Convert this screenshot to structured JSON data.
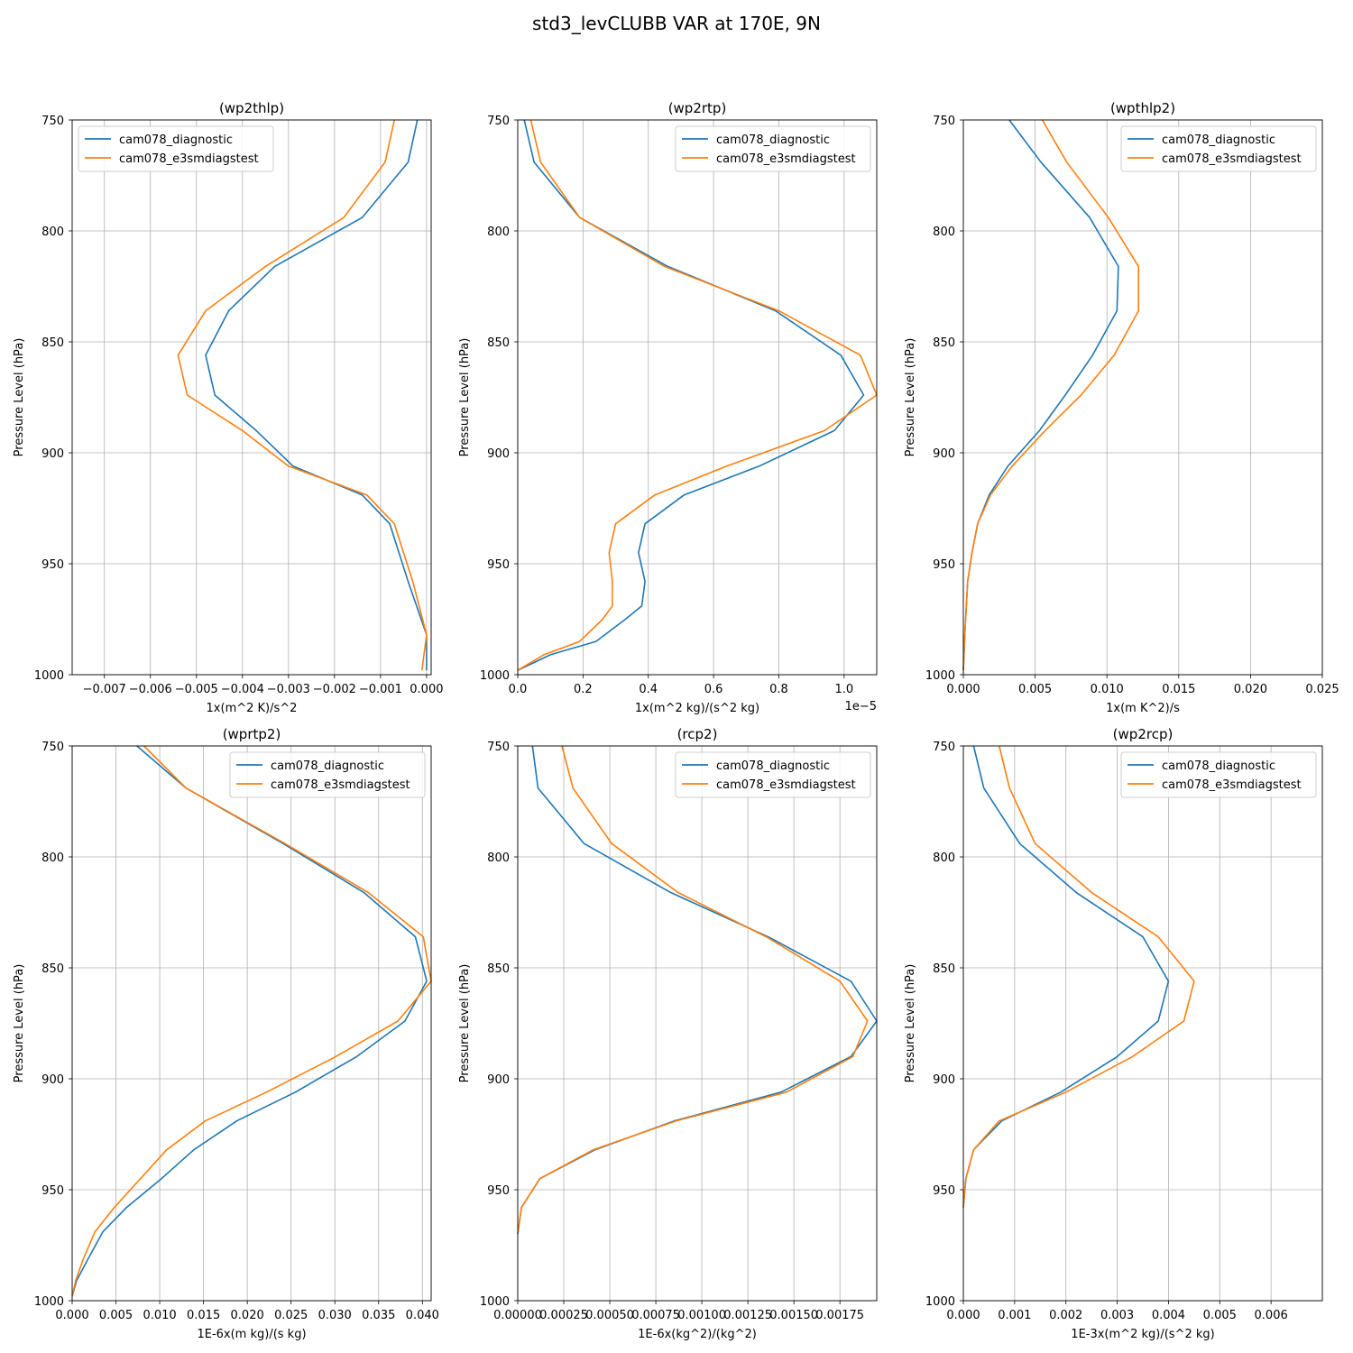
{
  "figure": {
    "title": "std3_levCLUBB VAR at 170E, 9N",
    "series_colors": {
      "cam078_diagnostic": "#1f77b4",
      "cam078_e3smdiagstest": "#ff7f0e"
    }
  },
  "chart_data": [
    {
      "type": "line",
      "title": "(wp2thlp)",
      "xlabel": "1x(m^2 K)/s^2",
      "ylabel": "Pressure Level (hPa)",
      "xlim": [
        -0.0077,
        0.0001
      ],
      "ylim": [
        1000,
        750
      ],
      "y_inverted": true,
      "xticks": [
        -0.007,
        -0.006,
        -0.005,
        -0.004,
        -0.003,
        -0.002,
        -0.001,
        0.0
      ],
      "xtick_labels": [
        "−0.007",
        "−0.006",
        "−0.005",
        "−0.004",
        "−0.003",
        "−0.002",
        "−0.001",
        "0.000"
      ],
      "yticks": [
        750,
        800,
        850,
        900,
        950,
        1000
      ],
      "ytick_labels": [
        "750",
        "800",
        "850",
        "900",
        "950",
        "1000"
      ],
      "grid": true,
      "legend_position": "upper-left",
      "series": [
        {
          "name": "cam078_diagnostic",
          "color": "#1f77b4",
          "x": [
            -0.0002,
            -0.0004,
            -0.0014,
            -0.0033,
            -0.0043,
            -0.0048,
            -0.0046,
            -0.0037,
            -0.0029,
            -0.0014,
            -0.0008,
            -0.0006,
            -0.0004,
            0.0,
            0.0
          ],
          "y": [
            750,
            769,
            794,
            816,
            836,
            856,
            874,
            890,
            906,
            919,
            932,
            945,
            958,
            982,
            998
          ]
        },
        {
          "name": "cam078_e3smdiagstest",
          "color": "#ff7f0e",
          "x": [
            -0.0007,
            -0.0009,
            -0.0018,
            -0.0035,
            -0.0048,
            -0.0054,
            -0.0052,
            -0.004,
            -0.003,
            -0.0013,
            -0.0007,
            -0.0005,
            -0.0003,
            0.0,
            -0.0001
          ],
          "y": [
            750,
            769,
            794,
            816,
            836,
            856,
            874,
            890,
            906,
            919,
            932,
            945,
            958,
            982,
            998
          ]
        }
      ]
    },
    {
      "type": "line",
      "title": "(wp2rtp)",
      "xlabel": "1x(m^2 kg)/(s^2 kg)",
      "ylabel": "Pressure Level (hPa)",
      "x_scale_label": "1e−5",
      "xlim": [
        0.0,
        1.1
      ],
      "ylim": [
        1000,
        750
      ],
      "y_inverted": true,
      "xticks": [
        0.0,
        0.2,
        0.4,
        0.6,
        0.8,
        1.0
      ],
      "xtick_labels": [
        "0.0",
        "0.2",
        "0.4",
        "0.6",
        "0.8",
        "1.0"
      ],
      "yticks": [
        750,
        800,
        850,
        900,
        950,
        1000
      ],
      "ytick_labels": [
        "750",
        "800",
        "850",
        "900",
        "950",
        "1000"
      ],
      "grid": true,
      "legend_position": "upper-right",
      "series": [
        {
          "name": "cam078_diagnostic",
          "color": "#1f77b4",
          "x": [
            0.02,
            0.05,
            0.19,
            0.46,
            0.79,
            0.99,
            1.06,
            0.97,
            0.74,
            0.51,
            0.39,
            0.37,
            0.39,
            0.38,
            0.33,
            0.24,
            0.1,
            0.0
          ],
          "y": [
            750,
            769,
            794,
            816,
            836,
            856,
            874,
            890,
            906,
            919,
            932,
            945,
            958,
            969,
            975,
            985,
            991,
            998
          ]
        },
        {
          "name": "cam078_e3smdiagstest",
          "color": "#ff7f0e",
          "x": [
            0.04,
            0.07,
            0.19,
            0.45,
            0.8,
            1.05,
            1.1,
            0.94,
            0.64,
            0.42,
            0.3,
            0.28,
            0.29,
            0.29,
            0.26,
            0.19,
            0.08,
            0.0
          ],
          "y": [
            750,
            769,
            794,
            816,
            836,
            856,
            874,
            890,
            906,
            919,
            932,
            945,
            958,
            969,
            975,
            985,
            991,
            998
          ]
        }
      ]
    },
    {
      "type": "line",
      "title": "(wpthlp2)",
      "xlabel": "1x(m K^2)/s",
      "ylabel": "Pressure Level (hPa)",
      "xlim": [
        0.0,
        0.025
      ],
      "ylim": [
        1000,
        750
      ],
      "y_inverted": true,
      "xticks": [
        0.0,
        0.005,
        0.01,
        0.015,
        0.02,
        0.025
      ],
      "xtick_labels": [
        "0.000",
        "0.005",
        "0.010",
        "0.015",
        "0.020",
        "0.025"
      ],
      "yticks": [
        750,
        800,
        850,
        900,
        950,
        1000
      ],
      "ytick_labels": [
        "750",
        "800",
        "850",
        "900",
        "950",
        "1000"
      ],
      "grid": true,
      "legend_position": "upper-right",
      "series": [
        {
          "name": "cam078_diagnostic",
          "color": "#1f77b4",
          "x": [
            0.0032,
            0.0054,
            0.0088,
            0.0108,
            0.0107,
            0.009,
            0.0071,
            0.0053,
            0.0031,
            0.0018,
            0.001,
            0.0006,
            0.0003,
            0.0001,
            0.0
          ],
          "y": [
            750,
            769,
            794,
            816,
            836,
            856,
            874,
            890,
            906,
            919,
            932,
            945,
            958,
            982,
            998
          ]
        },
        {
          "name": "cam078_e3smdiagstest",
          "color": "#ff7f0e",
          "x": [
            0.0055,
            0.0072,
            0.0101,
            0.0122,
            0.0122,
            0.0105,
            0.0082,
            0.0057,
            0.0034,
            0.0019,
            0.001,
            0.0006,
            0.0003,
            0.0001,
            0.0
          ],
          "y": [
            750,
            769,
            794,
            816,
            836,
            856,
            874,
            890,
            906,
            919,
            932,
            945,
            958,
            982,
            998
          ]
        }
      ]
    },
    {
      "type": "line",
      "title": "(wprtp2)",
      "xlabel": "1E-6x(m kg)/(s kg)",
      "ylabel": "Pressure Level (hPa)",
      "xlim": [
        0.0,
        0.041
      ],
      "ylim": [
        1000,
        750
      ],
      "y_inverted": true,
      "xticks": [
        0.0,
        0.005,
        0.01,
        0.015,
        0.02,
        0.025,
        0.03,
        0.035,
        0.04
      ],
      "xtick_labels": [
        "0.000",
        "0.005",
        "0.010",
        "0.015",
        "0.020",
        "0.025",
        "0.030",
        "0.035",
        "0.040"
      ],
      "yticks": [
        750,
        800,
        850,
        900,
        950,
        1000
      ],
      "ytick_labels": [
        "750",
        "800",
        "850",
        "900",
        "950",
        "1000"
      ],
      "grid": true,
      "legend_position": "upper-right",
      "series": [
        {
          "name": "cam078_diagnostic",
          "color": "#1f77b4",
          "x": [
            0.0074,
            0.013,
            0.0241,
            0.0333,
            0.0392,
            0.0405,
            0.038,
            0.0325,
            0.0255,
            0.0188,
            0.0139,
            0.0102,
            0.0062,
            0.0035,
            0.0017,
            0.0005,
            0.0
          ],
          "y": [
            750,
            769,
            794,
            816,
            836,
            856,
            874,
            890,
            906,
            919,
            932,
            945,
            958,
            969,
            982,
            991,
            998
          ]
        },
        {
          "name": "cam078_e3smdiagstest",
          "color": "#ff7f0e",
          "x": [
            0.0082,
            0.013,
            0.0243,
            0.0338,
            0.0401,
            0.041,
            0.0372,
            0.0301,
            0.0222,
            0.0152,
            0.0108,
            0.0078,
            0.0048,
            0.0026,
            0.0012,
            0.0004,
            0.0
          ],
          "y": [
            750,
            769,
            794,
            816,
            836,
            856,
            874,
            890,
            906,
            919,
            932,
            945,
            958,
            969,
            982,
            991,
            998
          ]
        }
      ]
    },
    {
      "type": "line",
      "title": "(rcp2)",
      "xlabel": "1E-6x(kg^2)/(kg^2)",
      "ylabel": "Pressure Level (hPa)",
      "xlim": [
        0.0,
        0.00195
      ],
      "ylim": [
        1000,
        750
      ],
      "y_inverted": true,
      "xticks": [
        0.0,
        0.00025,
        0.0005,
        0.00075,
        0.001,
        0.00125,
        0.0015,
        0.00175
      ],
      "xtick_labels": [
        "0.00000",
        "0.00025",
        "0.00050",
        "0.00075",
        "0.00100",
        "0.00125",
        "0.00150",
        "0.00175"
      ],
      "yticks": [
        750,
        800,
        850,
        900,
        950,
        1000
      ],
      "ytick_labels": [
        "750",
        "800",
        "850",
        "900",
        "950",
        "1000"
      ],
      "grid": true,
      "legend_position": "upper-right",
      "series": [
        {
          "name": "cam078_diagnostic",
          "color": "#1f77b4",
          "x": [
            8e-05,
            0.00011,
            0.00036,
            0.00083,
            0.00136,
            0.00181,
            0.00195,
            0.00181,
            0.00143,
            0.00085,
            0.00042,
            0.00012,
            2e-05,
            0.0
          ],
          "y": [
            750,
            769,
            794,
            816,
            836,
            856,
            874,
            890,
            906,
            919,
            932,
            945,
            958,
            970
          ]
        },
        {
          "name": "cam078_e3smdiagstest",
          "color": "#ff7f0e",
          "x": [
            0.00024,
            0.0003,
            0.00051,
            0.00087,
            0.00135,
            0.00175,
            0.0019,
            0.00182,
            0.00146,
            0.00086,
            0.00041,
            0.00012,
            2e-05,
            0.0
          ],
          "y": [
            750,
            769,
            794,
            816,
            836,
            856,
            874,
            890,
            906,
            919,
            932,
            945,
            958,
            970
          ]
        }
      ]
    },
    {
      "type": "line",
      "title": "(wp2rcp)",
      "xlabel": "1E-3x(m^2 kg)/(s^2 kg)",
      "ylabel": "Pressure Level (hPa)",
      "xlim": [
        0.0,
        0.007
      ],
      "ylim": [
        1000,
        750
      ],
      "y_inverted": true,
      "xticks": [
        0.0,
        0.001,
        0.002,
        0.003,
        0.004,
        0.005,
        0.006
      ],
      "xtick_labels": [
        "0.000",
        "0.001",
        "0.002",
        "0.003",
        "0.004",
        "0.005",
        "0.006"
      ],
      "yticks": [
        750,
        800,
        850,
        900,
        950,
        1000
      ],
      "ytick_labels": [
        "750",
        "800",
        "850",
        "900",
        "950",
        "1000"
      ],
      "grid": true,
      "legend_position": "upper-right",
      "series": [
        {
          "name": "cam078_diagnostic",
          "color": "#1f77b4",
          "x": [
            0.0002,
            0.0004,
            0.0011,
            0.0022,
            0.0035,
            0.004,
            0.0038,
            0.003,
            0.0019,
            0.00075,
            0.0002,
            5e-05,
            0.0
          ],
          "y": [
            750,
            769,
            794,
            816,
            836,
            856,
            874,
            890,
            906,
            919,
            932,
            945,
            958
          ]
        },
        {
          "name": "cam078_e3smdiagstest",
          "color": "#ff7f0e",
          "x": [
            0.0007,
            0.0009,
            0.0014,
            0.0025,
            0.0038,
            0.0045,
            0.0043,
            0.0033,
            0.002,
            0.0007,
            0.0002,
            5e-05,
            0.0
          ],
          "y": [
            750,
            769,
            794,
            816,
            836,
            856,
            874,
            890,
            906,
            919,
            932,
            945,
            958
          ]
        }
      ]
    }
  ]
}
